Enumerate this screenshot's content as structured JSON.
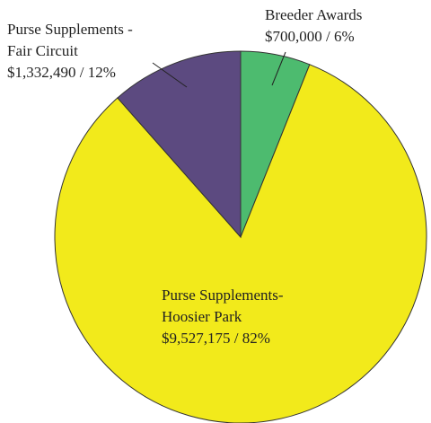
{
  "chart_data": {
    "type": "pie",
    "categories": [
      [
        "Breeder Awards"
      ],
      [
        "Purse Supplements-",
        "Hoosier Park"
      ],
      [
        "Purse Supplements -",
        "Fair Circuit"
      ]
    ],
    "values": [
      700000,
      9527175,
      1332490
    ],
    "value_labels": [
      "$700,000 / 6%",
      "$9,527,175 / 82%",
      "$1,332,490 / 12%"
    ],
    "colors": [
      "#4dbb6f",
      "#f2ea1b",
      "#5c4a80"
    ]
  }
}
